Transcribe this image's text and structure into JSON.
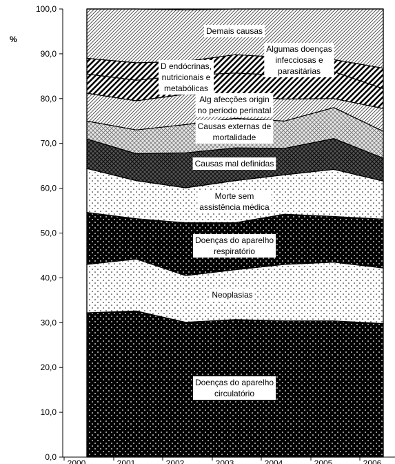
{
  "chart_data": {
    "type": "area",
    "stacked": true,
    "percent_unit": "%",
    "x": [
      "2000",
      "2001",
      "2002",
      "2003",
      "2004",
      "2005",
      "2006"
    ],
    "ylim": [
      0,
      100
    ],
    "y_ticks": [
      "0,0",
      "10,0",
      "20,0",
      "30,0",
      "40,0",
      "50,0",
      "60,0",
      "70,0",
      "80,0",
      "90,0",
      "100,0"
    ],
    "grid": false,
    "legend": "inline labels",
    "series": [
      {
        "name": "Doenças do aparelho circulatório",
        "label_lines": [
          "Doenças do aparelho",
          "circulatório"
        ],
        "pattern": "dots-dark",
        "values": [
          32.2,
          32.6,
          30.1,
          30.7,
          30.4,
          30.4,
          29.8
        ]
      },
      {
        "name": "Neoplasias",
        "label_lines": [
          "Neoplasias"
        ],
        "pattern": "dots-light",
        "values": [
          10.8,
          11.6,
          10.4,
          11.1,
          12.6,
          13.1,
          12.4
        ]
      },
      {
        "name": "Doenças do aparelho respiratório",
        "label_lines": [
          "Doenças do aparelho",
          "respiratório"
        ],
        "pattern": "dots-dark",
        "values": [
          11.6,
          9.0,
          11.8,
          10.5,
          11.2,
          10.2,
          10.9
        ]
      },
      {
        "name": "Morte sem assistência médica",
        "label_lines": [
          "Morte sem",
          "assistência médica"
        ],
        "pattern": "dots-light",
        "values": [
          9.8,
          8.5,
          7.8,
          9.4,
          8.8,
          10.5,
          8.5
        ]
      },
      {
        "name": "Causas mal definidas",
        "label_lines": [
          "Causas mal definidas"
        ],
        "pattern": "diamond-dark",
        "values": [
          6.6,
          6.0,
          7.8,
          7.3,
          5.9,
          6.9,
          5.1
        ]
      },
      {
        "name": "Causas externas de mortalidade",
        "label_lines": [
          "Causas externas de",
          "mortalidade"
        ],
        "pattern": "diamond-light",
        "values": [
          4.0,
          5.3,
          6.3,
          6.6,
          6.1,
          6.9,
          6.0
        ]
      },
      {
        "name": "Alg afecções origin no período perinatal",
        "label_lines": [
          "Alg afecções origin",
          "no período perinatal"
        ],
        "pattern": "diagonal",
        "values": [
          6.2,
          6.5,
          6.8,
          4.8,
          4.9,
          2.0,
          5.1
        ]
      },
      {
        "name": "Dendócrinas, nutricionais e metabólicas",
        "label_lines": [
          "D endócrinas,",
          "nutricionais e",
          "metabólicas"
        ],
        "pattern": "hatch-dark",
        "values": [
          4.3,
          4.6,
          4.2,
          5.3,
          5.3,
          6.0,
          4.4
        ]
      },
      {
        "name": "Algumas doenças infecciosas e parasitárias",
        "label_lines": [
          "Algumas doenças",
          "infecciosas e",
          "parasitárias"
        ],
        "pattern": "hatch-dark",
        "values": [
          3.5,
          3.9,
          3.1,
          4.1,
          4.0,
          2.7,
          4.6
        ]
      },
      {
        "name": "Demais causas",
        "label_lines": [
          "Demais causas"
        ],
        "pattern": "diagonal",
        "values": [
          11.0,
          12.0,
          11.5,
          10.2,
          10.8,
          11.3,
          13.2
        ]
      }
    ]
  }
}
